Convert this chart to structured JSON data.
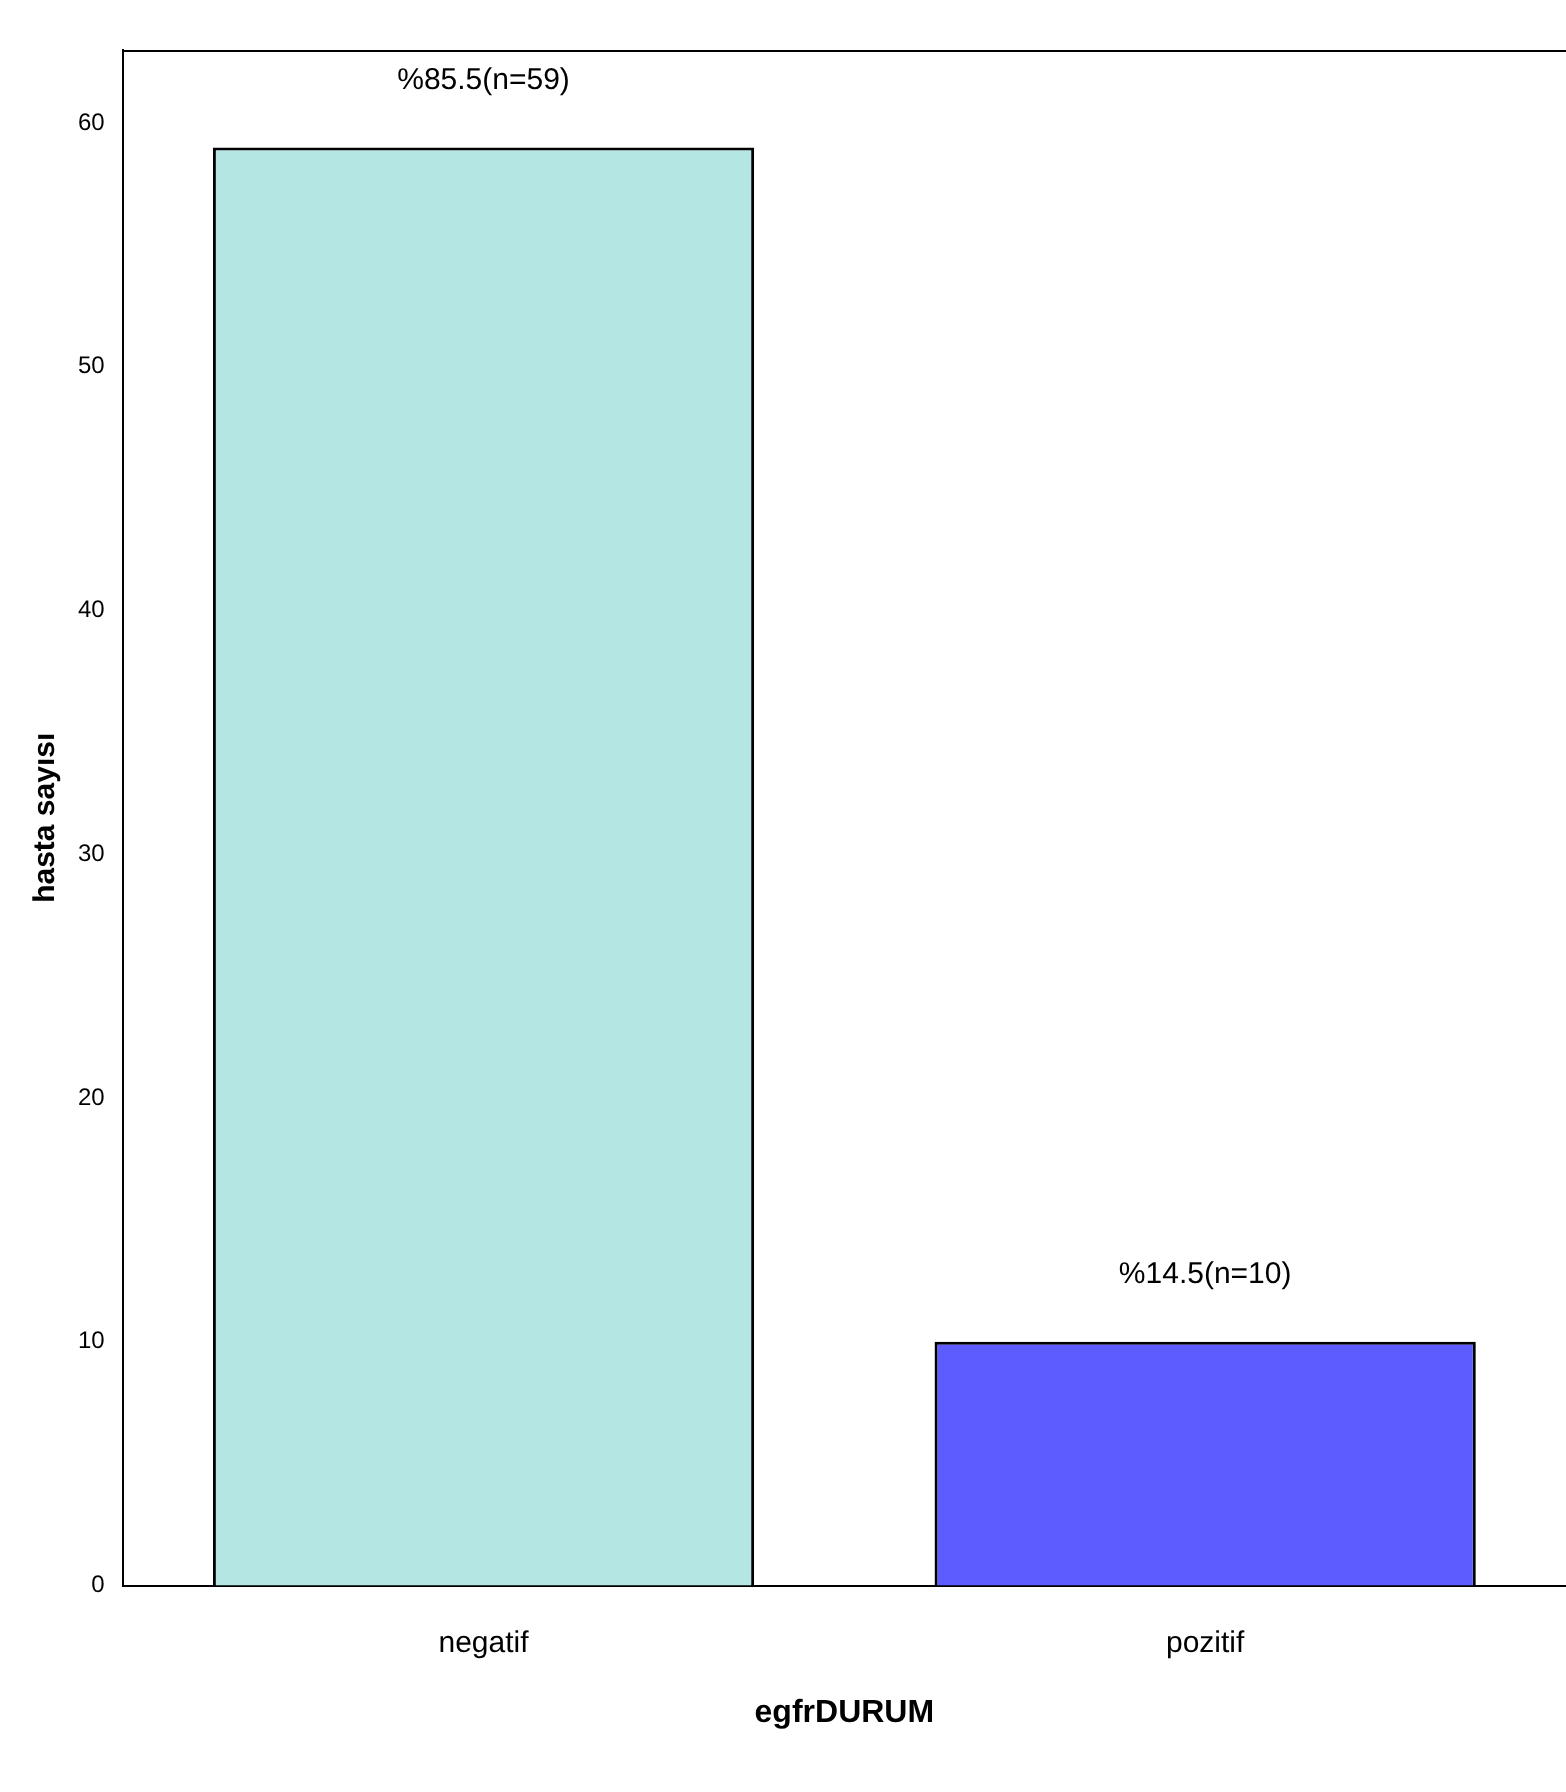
{
  "chart_data": {
    "type": "bar",
    "xlabel": "egfrDURUM",
    "ylabel": "hasta sayısı",
    "categories": [
      "negatif",
      "pozitif"
    ],
    "values": [
      59,
      10
    ],
    "colors": [
      "#b4e6e4",
      "#5c5cff"
    ],
    "value_labels": [
      "%85.5(n=59)",
      "%14.5(n=10)"
    ],
    "ylim": [
      0,
      63
    ],
    "yticks": [
      0,
      10,
      20,
      30,
      40,
      50,
      60
    ],
    "grid": false,
    "legend": false
  }
}
